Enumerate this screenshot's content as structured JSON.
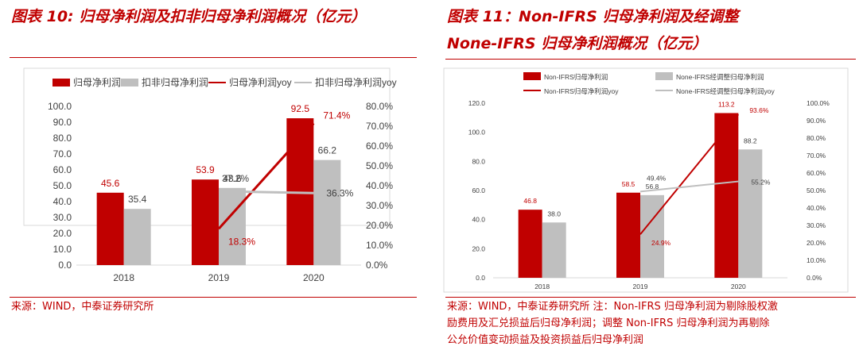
{
  "chart_data": [
    {
      "type": "bar",
      "title": "图表 10: 归母净利润及扣非归母净利润概况（亿元）",
      "categories": [
        "2018",
        "2019",
        "2020"
      ],
      "series": [
        {
          "name": "归母净利润",
          "kind": "bar",
          "axis": "left",
          "color": "#c00000",
          "values": [
            45.6,
            53.9,
            92.5
          ],
          "labels": [
            "45.6",
            "53.9",
            "92.5"
          ]
        },
        {
          "name": "扣非归母净利润",
          "kind": "bar",
          "axis": "left",
          "color": "#bfbfbf",
          "values": [
            35.4,
            48.6,
            66.2
          ],
          "labels": [
            "35.4",
            "48.6",
            "66.2"
          ]
        },
        {
          "name": "归母净利润yoy",
          "kind": "line",
          "axis": "right",
          "color": "#c00000",
          "values": [
            null,
            18.3,
            71.4
          ],
          "labels": [
            "",
            "18.3%",
            "71.4%"
          ]
        },
        {
          "name": "扣非归母净利润yoy",
          "kind": "line",
          "axis": "right",
          "color": "#bfbfbf",
          "values": [
            null,
            37.2,
            36.3
          ],
          "labels": [
            "",
            "37.2%",
            "36.3%"
          ]
        }
      ],
      "y_left_ticks": [
        "0.0",
        "10.0",
        "20.0",
        "30.0",
        "40.0",
        "50.0",
        "60.0",
        "70.0",
        "80.0",
        "90.0",
        "100.0"
      ],
      "y_right_ticks": [
        "0.0%",
        "10.0%",
        "20.0%",
        "30.0%",
        "40.0%",
        "50.0%",
        "60.0%",
        "70.0%",
        "80.0%"
      ],
      "ylim_left": [
        0,
        100
      ],
      "ylim_right": [
        0,
        80
      ],
      "legend_position": "top",
      "grid": false,
      "source": "来源：WIND，中泰证券研究所"
    },
    {
      "type": "bar",
      "title": "图表 11：Non-IFRS 归母净利润及经调整",
      "title_line2": "None-IFRS 归母净利润概况（亿元）",
      "categories": [
        "2018",
        "2019",
        "2020"
      ],
      "series": [
        {
          "name": "Non-IFRS归母净利润",
          "kind": "bar",
          "axis": "left",
          "color": "#c00000",
          "values": [
            46.8,
            58.5,
            113.2
          ],
          "labels": [
            "46.8",
            "58.5",
            "113.2"
          ]
        },
        {
          "name": "None-IFRS经调整归母净利润",
          "kind": "bar",
          "axis": "left",
          "color": "#bfbfbf",
          "values": [
            38.0,
            56.8,
            88.2
          ],
          "labels": [
            "38.0",
            "56.8",
            "88.2"
          ]
        },
        {
          "name": "Non-IFRS归母净利润yoy",
          "kind": "line",
          "axis": "right",
          "color": "#c00000",
          "values": [
            null,
            24.9,
            93.6
          ],
          "labels": [
            "",
            "24.9%",
            "93.6%"
          ]
        },
        {
          "name": "None-IFRS经调整归母净利润yoy",
          "kind": "line",
          "axis": "right",
          "color": "#bfbfbf",
          "values": [
            null,
            49.4,
            55.2
          ],
          "labels": [
            "",
            "49.4%",
            "55.2%"
          ]
        }
      ],
      "y_left_ticks": [
        "0.0",
        "20.0",
        "40.0",
        "60.0",
        "80.0",
        "100.0",
        "120.0"
      ],
      "y_right_ticks": [
        "0.0%",
        "10.0%",
        "20.0%",
        "30.0%",
        "40.0%",
        "50.0%",
        "60.0%",
        "70.0%",
        "80.0%",
        "90.0%",
        "100.0%"
      ],
      "ylim_left": [
        0,
        120
      ],
      "ylim_right": [
        0,
        100
      ],
      "legend_position": "top",
      "grid": false,
      "source": "来源：WIND，中泰证券研究所  注：Non-IFRS 归母净利润为剔除股权激",
      "source_line2": "励费用及汇兑损益后归母净利润；调整 Non-IFRS 归母净利润为再剔除",
      "source_line3": "公允价值变动损益及投资损益后归母净利润"
    }
  ]
}
